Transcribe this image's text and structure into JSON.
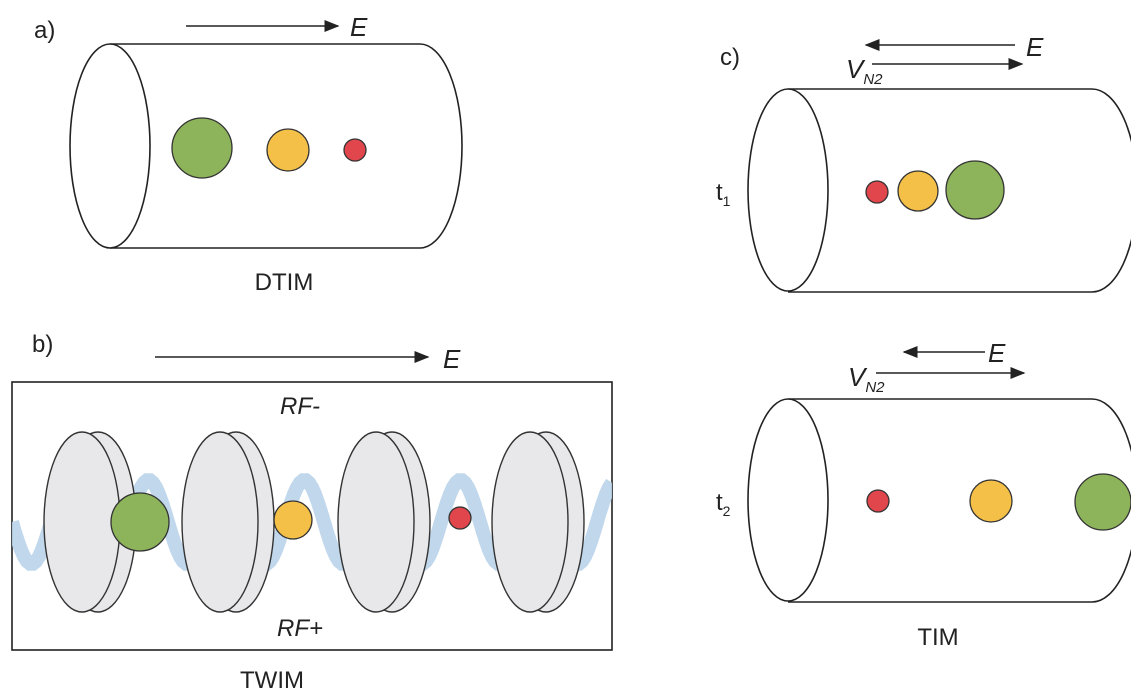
{
  "panel_a": {
    "label": "a)",
    "field": "E",
    "name": "DTIM"
  },
  "panel_b": {
    "label": "b)",
    "field": "E",
    "rf_top": "RF-",
    "rf_bottom": "RF+",
    "name": "TWIM"
  },
  "panel_c": {
    "label": "c)",
    "name": "TIM",
    "times": [
      {
        "t": "t",
        "sub": "1",
        "field": "E",
        "velocity": "V",
        "velocity_sub": "N2"
      },
      {
        "t": "t",
        "sub": "2",
        "field": "E",
        "velocity": "V",
        "velocity_sub": "N2"
      }
    ]
  }
}
